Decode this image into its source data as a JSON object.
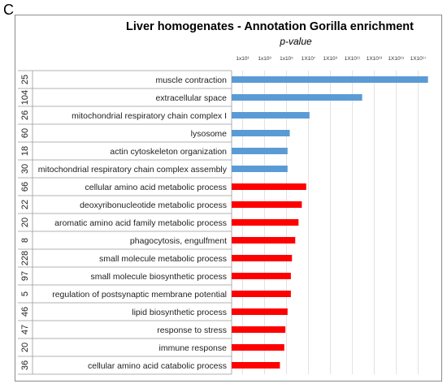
{
  "panel_letter": "C",
  "colors": {
    "blue": "#5b9bd5",
    "red": "#ff0000",
    "grid": "#d0d0d0"
  },
  "chart_data": {
    "type": "bar",
    "orientation": "horizontal",
    "title": "Liver homogenates - Annotation Gorilla enrichment",
    "xlabel": "p-value",
    "x_scale": "log-exponent",
    "xlim": [
      0,
      18.3
    ],
    "x_ticks": [
      {
        "value": 1,
        "label": "1x10¹"
      },
      {
        "value": 3,
        "label": "1x10³"
      },
      {
        "value": 5,
        "label": "1x10⁵"
      },
      {
        "value": 7,
        "label": "1X10⁷"
      },
      {
        "value": 9,
        "label": "1X10⁹"
      },
      {
        "value": 11,
        "label": "1X10¹¹"
      },
      {
        "value": 13,
        "label": "1X10¹³"
      },
      {
        "value": 15,
        "label": "1X10¹⁵"
      },
      {
        "value": 17,
        "label": "1X10¹⁷"
      }
    ],
    "grid": true,
    "rows": [
      {
        "count": "25",
        "label": "muscle contraction",
        "value": 17.9,
        "color": "blue"
      },
      {
        "count": "104",
        "label": "extracellular space",
        "value": 11.9,
        "color": "blue"
      },
      {
        "count": "26",
        "label": "mitochondrial respiratory chain complex I",
        "value": 7.1,
        "color": "blue"
      },
      {
        "count": "60",
        "label": "lysosome",
        "value": 5.3,
        "color": "blue"
      },
      {
        "count": "18",
        "label": "actin cytoskeleton organization",
        "value": 5.1,
        "color": "blue"
      },
      {
        "count": "30",
        "label": "mitochondrial respiratory chain complex assembly",
        "value": 5.1,
        "color": "blue"
      },
      {
        "count": "66",
        "label": "cellular amino acid metabolic process",
        "value": 6.8,
        "color": "red"
      },
      {
        "count": "22",
        "label": "deoxyribonucleotide metabolic process",
        "value": 6.4,
        "color": "red"
      },
      {
        "count": "20",
        "label": "aromatic amino acid family metabolic process",
        "value": 6.1,
        "color": "red"
      },
      {
        "count": "8",
        "label": "phagocytosis, engulfment",
        "value": 5.8,
        "color": "red"
      },
      {
        "count": "228",
        "label": "small molecule metabolic process",
        "value": 5.5,
        "color": "red"
      },
      {
        "count": "97",
        "label": "small molecule biosynthetic process",
        "value": 5.4,
        "color": "red"
      },
      {
        "count": "5",
        "label": "regulation of postsynaptic membrane potential",
        "value": 5.4,
        "color": "red"
      },
      {
        "count": "46",
        "label": "lipid biosynthetic process",
        "value": 5.1,
        "color": "red"
      },
      {
        "count": "47",
        "label": "response to stress",
        "value": 4.9,
        "color": "red"
      },
      {
        "count": "20",
        "label": "immune response",
        "value": 4.8,
        "color": "red"
      },
      {
        "count": "36",
        "label": "cellular amino acid catabolic process",
        "value": 4.4,
        "color": "red"
      }
    ]
  }
}
